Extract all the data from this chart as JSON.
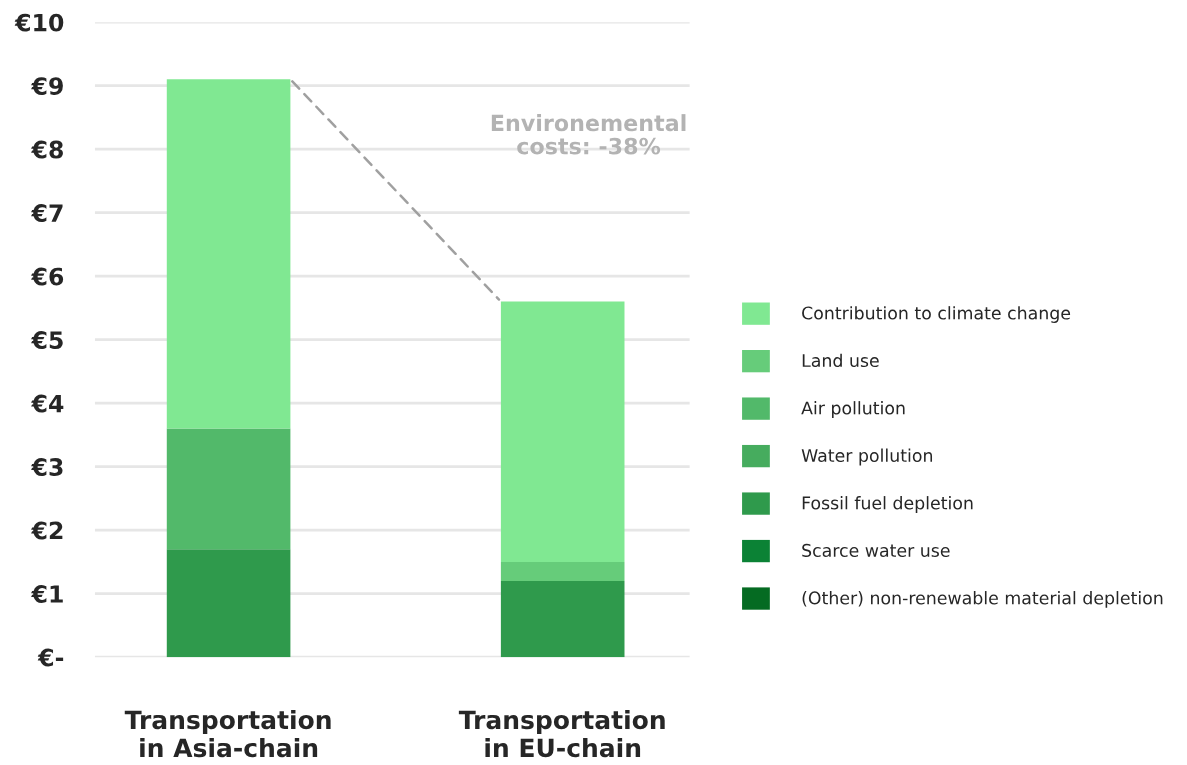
{
  "chart_data": {
    "type": "bar",
    "stacked": true,
    "categories": [
      "Transportation\nin Asia-chain",
      "Transportation\nin EU-chain"
    ],
    "series": [
      {
        "name": "(Other) non-renewable material depletion",
        "color": "#056b22",
        "values": [
          0,
          0
        ]
      },
      {
        "name": "Scarce water use",
        "color": "#0b8235",
        "values": [
          0,
          0
        ]
      },
      {
        "name": "Fossil fuel depletion",
        "color": "#2f9a4c",
        "values": [
          1.7,
          1.2
        ]
      },
      {
        "name": "Water pollution",
        "color": "#46ac5e",
        "values": [
          0,
          0
        ]
      },
      {
        "name": "Air pollution",
        "color": "#52b96a",
        "values": [
          1.9,
          0
        ]
      },
      {
        "name": "Land use",
        "color": "#66cc7a",
        "values": [
          0,
          0.3
        ]
      },
      {
        "name": "Contribution to climate change",
        "color": "#80e892",
        "values": [
          5.5,
          4.1
        ]
      }
    ],
    "ylim": [
      0,
      10
    ],
    "yticks": [
      {
        "value": 0,
        "label": "€-"
      },
      {
        "value": 1,
        "label": "€1"
      },
      {
        "value": 2,
        "label": "€2"
      },
      {
        "value": 3,
        "label": "€3"
      },
      {
        "value": 4,
        "label": "€4"
      },
      {
        "value": 5,
        "label": "€5"
      },
      {
        "value": 6,
        "label": "€6"
      },
      {
        "value": 7,
        "label": "€7"
      },
      {
        "value": 8,
        "label": "€8"
      },
      {
        "value": 9,
        "label": "€9"
      },
      {
        "value": 10,
        "label": "€10"
      }
    ],
    "grid": "y",
    "legend": "right",
    "annotations": [
      "Environemental\ncosts: -38%"
    ]
  }
}
